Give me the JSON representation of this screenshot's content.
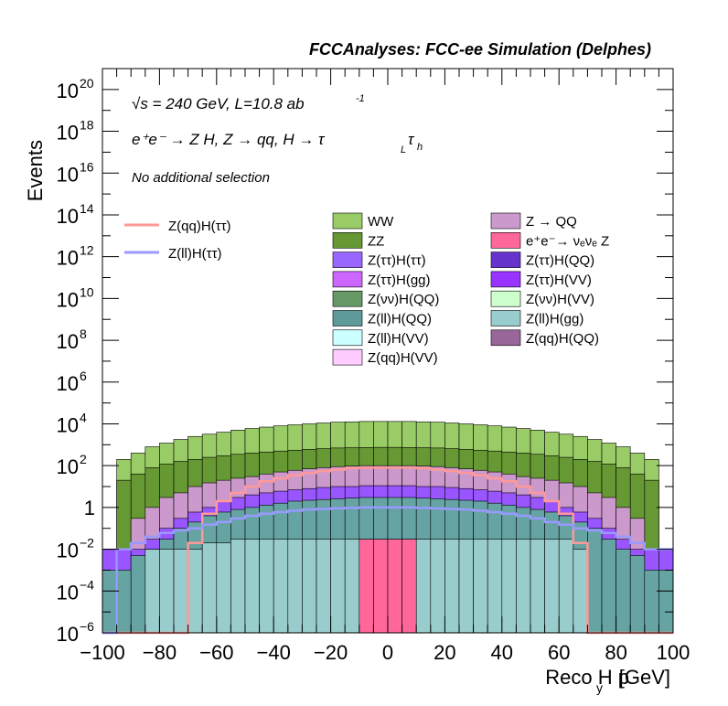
{
  "header": {
    "title": "FCCAnalyses: FCC-ee Simulation (Delphes)"
  },
  "annotations": {
    "energy": "√s = 240 GeV, L=10.8 ab",
    "energy_exp": "-1",
    "process": "e⁺e⁻ → Z H, Z  → qq, H  →  τ",
    "selection": "No additional selection"
  },
  "axes": {
    "xlabel": "Reco H p",
    "xlabel_sub": "y",
    "xlabel_unit": "[GeV]",
    "ylabel": "Events"
  },
  "chart_data": {
    "type": "histogram",
    "log_y": true,
    "xlim": [
      -100,
      100
    ],
    "ylim": [
      1e-06,
      1e+21
    ],
    "x_ticks": [
      -100,
      -80,
      -60,
      -40,
      -20,
      0,
      20,
      40,
      60,
      80,
      100
    ],
    "y_ticks": [
      {
        "base": "10",
        "exp": "-6",
        "value": 1e-06
      },
      {
        "base": "10",
        "exp": "-4",
        "value": 0.0001
      },
      {
        "base": "10",
        "exp": "-2",
        "value": 0.01
      },
      {
        "base": "1",
        "exp": "",
        "value": 1
      },
      {
        "base": "10",
        "exp": "2",
        "value": 100.0
      },
      {
        "base": "10",
        "exp": "4",
        "value": 10000.0
      },
      {
        "base": "10",
        "exp": "6",
        "value": 1000000.0
      },
      {
        "base": "10",
        "exp": "8",
        "value": 100000000.0
      },
      {
        "base": "10",
        "exp": "10",
        "value": 10000000000.0
      },
      {
        "base": "10",
        "exp": "12",
        "value": 1000000000000.0
      },
      {
        "base": "10",
        "exp": "14",
        "value": 100000000000000.0
      },
      {
        "base": "10",
        "exp": "16",
        "value": 1e+16
      },
      {
        "base": "10",
        "exp": "18",
        "value": 1e+18
      },
      {
        "base": "10",
        "exp": "20",
        "value": 1e+20
      }
    ],
    "bin_edges": [
      -100,
      -95,
      -90,
      -85,
      -80,
      -75,
      -70,
      -65,
      -60,
      -55,
      -50,
      -45,
      -40,
      -35,
      -30,
      -25,
      -20,
      -15,
      -10,
      -5,
      0,
      5,
      10,
      15,
      20,
      25,
      30,
      35,
      40,
      45,
      50,
      55,
      60,
      65,
      70,
      75,
      80,
      85,
      90,
      95,
      100
    ],
    "stack_levels": [
      {
        "name": "WW",
        "color": "#99cc66",
        "values": [
          0.01,
          200,
          400,
          800,
          1200,
          1800,
          2500,
          3200,
          4000,
          5000,
          6000,
          7000,
          8000,
          9000,
          10000,
          11000,
          12000,
          12500,
          13000,
          13000,
          13000,
          13000,
          12500,
          12000,
          11000,
          10000,
          9000,
          8000,
          7000,
          6000,
          5000,
          4000,
          3200,
          2500,
          1800,
          1200,
          800,
          400,
          200,
          0.01
        ]
      },
      {
        "name": "ZZ",
        "color": "#669933",
        "values": [
          0.01,
          20,
          40,
          80,
          120,
          160,
          200,
          250,
          300,
          350,
          400,
          450,
          500,
          550,
          600,
          650,
          700,
          720,
          740,
          750,
          750,
          740,
          720,
          700,
          650,
          600,
          550,
          500,
          450,
          400,
          350,
          300,
          250,
          200,
          160,
          120,
          80,
          40,
          20,
          0.01
        ]
      },
      {
        "name": "Z → QQ",
        "color": "#cc99cc",
        "values": [
          0.01,
          0.01,
          0.3,
          1,
          3,
          5,
          10,
          15,
          20,
          25,
          30,
          40,
          50,
          60,
          70,
          80,
          90,
          95,
          100,
          100,
          100,
          100,
          95,
          90,
          80,
          70,
          60,
          50,
          40,
          30,
          25,
          20,
          15,
          10,
          5,
          3,
          1,
          0.3,
          0.01,
          0.01
        ]
      },
      {
        "name": "Z(ττ)H(QQ)",
        "color": "#9955ff",
        "values": [
          0.01,
          0.01,
          0.01,
          0.03,
          0.1,
          0.3,
          0.6,
          1,
          2,
          3,
          4,
          5,
          6,
          7,
          8,
          9,
          10,
          10,
          11,
          11,
          11,
          11,
          10,
          10,
          9,
          8,
          7,
          6,
          5,
          4,
          3,
          2,
          1,
          0.6,
          0.3,
          0.1,
          0.03,
          0.01,
          0.01,
          0.01
        ]
      },
      {
        "name": "Z(ll)H(QQ)",
        "color": "#66a3a3",
        "values": [
          0.001,
          0.001,
          0.005,
          0.01,
          0.03,
          0.1,
          0.2,
          0.4,
          0.6,
          0.8,
          1,
          1.3,
          1.6,
          2,
          2.2,
          2.4,
          2.6,
          2.8,
          3,
          3,
          3,
          3,
          2.8,
          2.6,
          2.4,
          2.2,
          2,
          1.6,
          1.3,
          1,
          0.8,
          0.6,
          0.4,
          0.2,
          0.1,
          0.03,
          0.01,
          0.005,
          0.001,
          0.001
        ]
      },
      {
        "name": "Z(ll)H(gg)",
        "color": "#99cccc",
        "values": [
          1e-06,
          1e-06,
          1e-06,
          0.01,
          0.01,
          0.01,
          0.01,
          0.02,
          0.02,
          0.03,
          0.03,
          0.03,
          0.03,
          0.03,
          0.03,
          0.03,
          0.03,
          0.03,
          0.03,
          0.03,
          0.03,
          0.03,
          0.03,
          0.03,
          0.03,
          0.03,
          0.03,
          0.03,
          0.03,
          0.03,
          0.03,
          0.03,
          0.03,
          0.01,
          1e-06,
          1e-06,
          1e-06,
          1e-06,
          1e-06,
          1e-06
        ]
      },
      {
        "name": "e⁺e⁻→ νₑνₑ Z",
        "color": "#ff6699",
        "values": [
          0,
          0,
          0,
          0,
          0,
          0,
          0,
          0,
          0,
          0,
          0,
          0,
          0,
          0,
          0,
          0,
          0,
          0,
          0.03,
          0.03,
          0.03,
          0.03,
          0,
          0,
          0,
          0,
          0,
          0,
          0,
          0,
          0,
          0,
          0,
          0,
          0,
          0,
          0,
          0,
          0,
          0
        ]
      }
    ],
    "overlays": [
      {
        "name": "Z(qq)H(ττ)",
        "color": "#ff9999",
        "values": [
          1e-06,
          1e-06,
          1e-06,
          1e-06,
          1e-06,
          1e-06,
          0.02,
          0.5,
          2,
          5,
          10,
          18,
          25,
          35,
          45,
          55,
          65,
          75,
          80,
          80,
          80,
          80,
          75,
          65,
          55,
          45,
          35,
          25,
          18,
          10,
          5,
          2,
          0.5,
          0.02,
          1e-06,
          1e-06,
          1e-06,
          1e-06,
          1e-06,
          1e-06
        ]
      },
      {
        "name": "Z(ll)H(ττ)",
        "color": "#9999ff",
        "values": [
          1e-06,
          0.01,
          0.02,
          0.04,
          0.06,
          0.08,
          0.1,
          0.15,
          0.2,
          0.3,
          0.4,
          0.5,
          0.6,
          0.7,
          0.8,
          0.85,
          0.9,
          0.95,
          1,
          1,
          1,
          1,
          0.95,
          0.9,
          0.85,
          0.8,
          0.7,
          0.6,
          0.5,
          0.4,
          0.3,
          0.2,
          0.15,
          0.1,
          0.08,
          0.06,
          0.04,
          0.02,
          0.01,
          0.01
        ]
      }
    ],
    "legend": {
      "overlay_entries": [
        {
          "label": "Z(qq)H(ττ)",
          "color": "#ff9999"
        },
        {
          "label": "Z(ll)H(ττ)",
          "color": "#9999ff"
        }
      ],
      "col1": [
        {
          "label": "WW",
          "color": "#99cc66"
        },
        {
          "label": "ZZ",
          "color": "#669933"
        },
        {
          "label": "Z(ττ)H(ττ)",
          "color": "#9966ff"
        },
        {
          "label": "Z(ττ)H(gg)",
          "color": "#cc66ff"
        },
        {
          "label": "Z(νν)H(QQ)",
          "color": "#669966"
        },
        {
          "label": "Z(ll)H(QQ)",
          "color": "#5f9a9a"
        },
        {
          "label": "Z(ll)H(VV)",
          "color": "#ccffff"
        },
        {
          "label": "Z(qq)H(VV)",
          "color": "#ffccff"
        }
      ],
      "col2": [
        {
          "label": "Z → QQ",
          "color": "#cc99cc"
        },
        {
          "label": "e⁺e⁻→ νₑνₑ Z",
          "color": "#ff6699"
        },
        {
          "label": "Z(ττ)H(QQ)",
          "color": "#6633cc"
        },
        {
          "label": "Z(ττ)H(VV)",
          "color": "#9933ff"
        },
        {
          "label": "Z(νν)H(VV)",
          "color": "#ccffcc"
        },
        {
          "label": "Z(ll)H(gg)",
          "color": "#99cccc"
        },
        {
          "label": "Z(qq)H(QQ)",
          "color": "#996699"
        }
      ]
    }
  }
}
